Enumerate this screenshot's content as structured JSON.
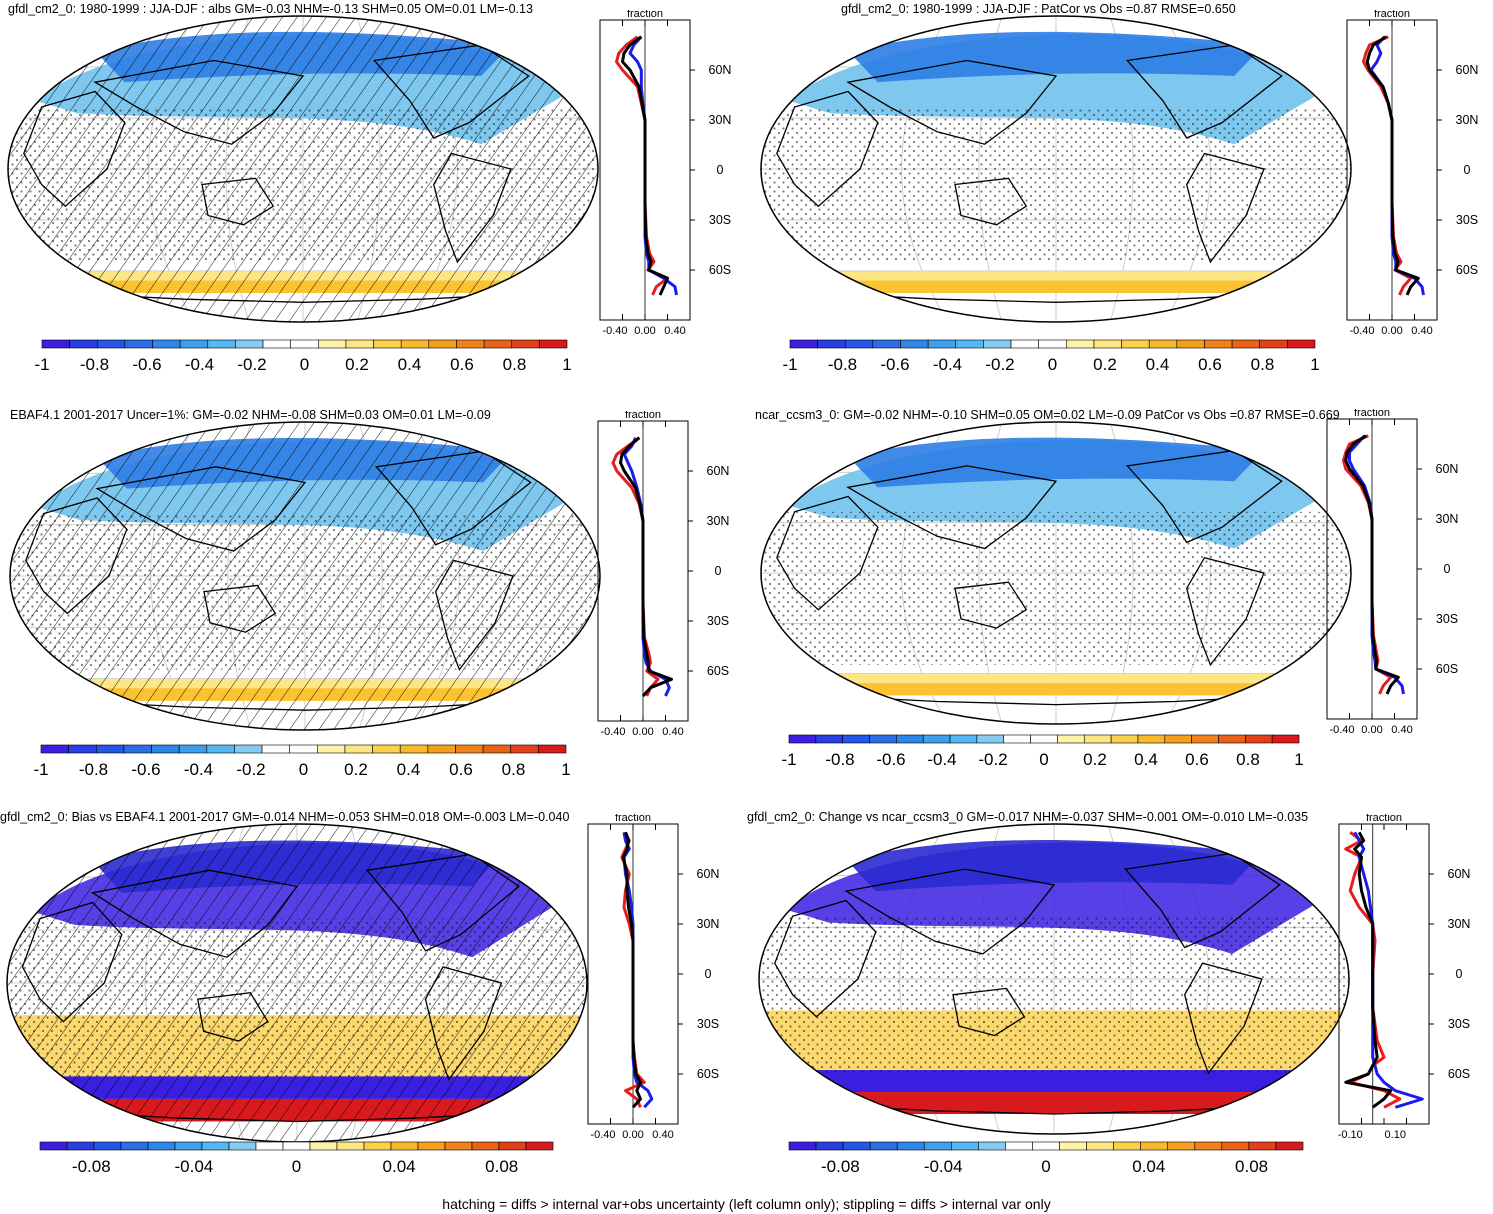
{
  "footer_note": "hatching = diffs > internal var+obs uncertainty (left column only); stippling = diffs > internal var only",
  "colors": {
    "blue_strong": "#3a1fe0",
    "blue_mid": "#2e7de6",
    "blue_light": "#7ec8f0",
    "yellow_light": "#fde784",
    "orange": "#f2a31b",
    "red": "#d8191e",
    "profile_model": "#e81c1c",
    "profile_obs": "#1b1bf0",
    "profile_mean": "#000000"
  },
  "colorbar_palette": [
    "#3a1fe0",
    "#2a3ee6",
    "#2556ea",
    "#2c6ee8",
    "#2e86e8",
    "#3ca0ec",
    "#55b8f2",
    "#86ccf2",
    "#ffffff",
    "#ffffff",
    "#fff3a8",
    "#fde784",
    "#fbd04a",
    "#f8ba2a",
    "#f4a01e",
    "#f0821a",
    "#ea6218",
    "#e2401a",
    "#d8191e"
  ],
  "chart_data": [
    {
      "type": "map",
      "title": "gfdl_cm2_0: 1980-1999 : JJA-DJF : albs GM=-0.03 NHM=-0.13 SHM=0.05 OM=0.01 LM=-0.13",
      "colorbar_ticks": [
        "-1",
        "-0.8",
        "-0.6",
        "-0.4",
        "-0.2",
        "0",
        "0.2",
        "0.4",
        "0.6",
        "0.8",
        "1"
      ],
      "colorbar_range": [
        -1,
        1
      ],
      "overlay": "hatching+stippling",
      "profile": {
        "title": "fraction",
        "x_ticks": [
          "-0.40",
          "0.00",
          "0.40"
        ],
        "xlim": [
          -0.6,
          0.6
        ],
        "lat_ticks": [
          "60N",
          "30N",
          "0",
          "30S",
          "60S"
        ],
        "series": [
          {
            "lat": [
              80,
              75,
              70,
              65,
              60,
              50,
              40,
              30,
              20,
              0,
              -20,
              -40,
              -50,
              -55,
              -60,
              -65,
              -70,
              -75
            ],
            "values": [
              -0.1,
              -0.25,
              -0.35,
              -0.38,
              -0.3,
              -0.1,
              -0.05,
              0.0,
              0.0,
              0.0,
              0.0,
              0.02,
              0.06,
              0.12,
              0.04,
              0.3,
              0.15,
              0.1
            ]
          },
          {
            "lat": [
              80,
              75,
              70,
              65,
              60,
              50,
              40,
              30,
              20,
              0,
              -20,
              -40,
              -50,
              -55,
              -60,
              -65,
              -70,
              -75
            ],
            "values": [
              -0.05,
              -0.15,
              -0.2,
              -0.1,
              -0.05,
              -0.05,
              -0.03,
              0.0,
              0.0,
              0.0,
              0.0,
              0.0,
              0.02,
              0.05,
              0.05,
              0.25,
              0.4,
              0.42
            ]
          },
          {
            "lat": [
              80,
              75,
              70,
              65,
              60,
              50,
              40,
              30,
              20,
              0,
              -20,
              -40,
              -50,
              -55,
              -60,
              -65,
              -70,
              -75
            ],
            "values": [
              -0.05,
              -0.2,
              -0.28,
              -0.3,
              -0.2,
              -0.08,
              -0.04,
              0.0,
              0.0,
              0.0,
              0.0,
              0.01,
              0.04,
              0.08,
              0.05,
              0.3,
              0.25,
              0.2
            ]
          }
        ]
      }
    },
    {
      "type": "map",
      "title": "gfdl_cm2_0: 1980-1999 : JJA-DJF : PatCor vs Obs =0.87 RMSE=0.650",
      "colorbar_ticks": [
        "-1",
        "-0.8",
        "-0.6",
        "-0.4",
        "-0.2",
        "0",
        "0.2",
        "0.4",
        "0.6",
        "0.8",
        "1"
      ],
      "colorbar_range": [
        -1,
        1
      ],
      "overlay": "stippling",
      "profile": {
        "title": "fraction",
        "x_ticks": [
          "-0.40",
          "0.00",
          "0.40"
        ],
        "xlim": [
          -0.6,
          0.6
        ],
        "lat_ticks": [
          "60N",
          "30N",
          "0",
          "30S",
          "60S"
        ],
        "series": [
          {
            "lat": [
              80,
              75,
              70,
              65,
              60,
              50,
              40,
              30,
              20,
              0,
              -20,
              -40,
              -50,
              -55,
              -60,
              -65,
              -70,
              -75
            ],
            "values": [
              -0.05,
              -0.3,
              -0.35,
              -0.38,
              -0.32,
              -0.15,
              -0.05,
              0.0,
              0.0,
              0.0,
              0.0,
              0.02,
              0.06,
              0.12,
              0.04,
              0.25,
              0.15,
              0.1
            ]
          },
          {
            "lat": [
              80,
              75,
              70,
              65,
              60,
              50,
              40,
              30,
              20,
              0,
              -20,
              -40,
              -50,
              -55,
              -60,
              -65,
              -70,
              -75
            ],
            "values": [
              -0.1,
              -0.2,
              -0.15,
              -0.2,
              -0.28,
              -0.12,
              -0.05,
              0.0,
              0.0,
              0.0,
              0.0,
              0.0,
              0.02,
              0.05,
              0.05,
              0.3,
              0.4,
              0.42
            ]
          },
          {
            "lat": [
              80,
              75,
              70,
              65,
              60,
              50,
              40,
              30,
              20,
              0,
              -20,
              -40,
              -50,
              -55,
              -60,
              -65,
              -70,
              -75
            ],
            "values": [
              -0.08,
              -0.25,
              -0.3,
              -0.33,
              -0.3,
              -0.12,
              -0.05,
              0.0,
              0.0,
              0.0,
              0.0,
              0.01,
              0.04,
              0.08,
              0.05,
              0.35,
              0.25,
              0.2
            ]
          }
        ]
      }
    },
    {
      "type": "map",
      "title": "EBAF4.1 2001-2017 Uncer=1%: GM=-0.02 NHM=-0.08 SHM=0.03 OM=0.01 LM=-0.09",
      "colorbar_ticks": [
        "-1",
        "-0.8",
        "-0.6",
        "-0.4",
        "-0.2",
        "0",
        "0.2",
        "0.4",
        "0.6",
        "0.8",
        "1"
      ],
      "colorbar_range": [
        -1,
        1
      ],
      "overlay": "hatching+stippling",
      "profile": {
        "title": "fraction",
        "x_ticks": [
          "-0.40",
          "0.00",
          "0.40"
        ],
        "xlim": [
          -0.6,
          0.6
        ],
        "lat_ticks": [
          "60N",
          "30N",
          "0",
          "30S",
          "60S"
        ],
        "series": [
          {
            "lat": [
              80,
              75,
              70,
              65,
              60,
              50,
              40,
              30,
              20,
              0,
              -20,
              -40,
              -50,
              -55,
              -60,
              -65,
              -70,
              -75
            ],
            "values": [
              -0.05,
              -0.2,
              -0.35,
              -0.4,
              -0.35,
              -0.15,
              -0.05,
              0.0,
              0.0,
              0.0,
              0.0,
              0.02,
              0.08,
              0.1,
              0.05,
              0.2,
              0.1,
              0.05
            ]
          },
          {
            "lat": [
              80,
              75,
              70,
              65,
              60,
              50,
              40,
              30,
              20,
              0,
              -20,
              -40,
              -50,
              -55,
              -60,
              -65,
              -70,
              -75
            ],
            "values": [
              -0.1,
              -0.15,
              -0.25,
              -0.2,
              -0.15,
              -0.08,
              -0.03,
              0.0,
              0.0,
              0.0,
              0.0,
              0.0,
              0.02,
              0.04,
              0.1,
              0.3,
              0.35,
              0.3
            ]
          },
          {
            "lat": [
              80,
              75,
              70,
              65,
              60,
              50,
              40,
              30,
              20,
              0,
              -20,
              -40,
              -50,
              -55,
              -60,
              -65,
              -70,
              -75
            ],
            "values": [
              -0.05,
              -0.18,
              -0.28,
              -0.3,
              -0.25,
              -0.1,
              -0.04,
              0.0,
              0.0,
              0.0,
              0.0,
              0.01,
              0.05,
              0.07,
              0.08,
              0.38,
              0.1,
              0.0
            ]
          }
        ]
      }
    },
    {
      "type": "map",
      "title": "ncar_ccsm3_0: GM=-0.02 NHM=-0.10 SHM=0.05 OM=0.02 LM=-0.09 PatCor vs Obs =0.87 RMSE=0.669",
      "colorbar_ticks": [
        "-1",
        "-0.8",
        "-0.6",
        "-0.4",
        "-0.2",
        "0",
        "0.2",
        "0.4",
        "0.6",
        "0.8",
        "1"
      ],
      "colorbar_range": [
        -1,
        1
      ],
      "overlay": "stippling",
      "profile": {
        "title": "fraction",
        "x_ticks": [
          "-0.40",
          "0.00",
          "0.40"
        ],
        "xlim": [
          -0.6,
          0.6
        ],
        "lat_ticks": [
          "60N",
          "30N",
          "0",
          "30S",
          "60S"
        ],
        "series": [
          {
            "lat": [
              80,
              75,
              70,
              65,
              60,
              50,
              40,
              30,
              20,
              0,
              -20,
              -40,
              -50,
              -55,
              -60,
              -65,
              -70,
              -75
            ],
            "values": [
              -0.05,
              -0.3,
              -0.35,
              -0.38,
              -0.35,
              -0.15,
              -0.05,
              0.0,
              0.0,
              0.0,
              0.0,
              0.02,
              0.06,
              0.08,
              0.05,
              0.25,
              0.15,
              0.1
            ]
          },
          {
            "lat": [
              80,
              75,
              70,
              65,
              60,
              50,
              40,
              30,
              20,
              0,
              -20,
              -40,
              -50,
              -55,
              -60,
              -65,
              -70,
              -75
            ],
            "values": [
              -0.1,
              -0.2,
              -0.3,
              -0.3,
              -0.25,
              -0.1,
              -0.03,
              0.0,
              0.0,
              0.0,
              0.0,
              0.0,
              0.02,
              0.04,
              0.05,
              0.3,
              0.4,
              0.42
            ]
          },
          {
            "lat": [
              80,
              75,
              70,
              65,
              60,
              50,
              40,
              30,
              20,
              0,
              -20,
              -40,
              -50,
              -55,
              -60,
              -65,
              -70,
              -75
            ],
            "values": [
              -0.08,
              -0.25,
              -0.33,
              -0.35,
              -0.3,
              -0.12,
              -0.04,
              0.0,
              0.0,
              0.0,
              0.0,
              0.01,
              0.04,
              0.06,
              0.05,
              0.35,
              0.25,
              0.2
            ]
          }
        ]
      }
    },
    {
      "type": "map",
      "title": "gfdl_cm2_0: Bias vs EBAF4.1 2001-2017 GM=-0.014 NHM=-0.053 SHM=0.018 OM=-0.003 LM=-0.040",
      "colorbar_ticks": [
        "-0.08",
        "-0.04",
        "0",
        "0.04",
        "0.08"
      ],
      "colorbar_range": [
        -0.1,
        0.1
      ],
      "overlay": "hatching+stippling",
      "profile": {
        "title": "fraction",
        "x_ticks": [
          "-0.40",
          "0.00",
          "0.40"
        ],
        "xlim": [
          -0.6,
          0.6
        ],
        "lat_ticks": [
          "60N",
          "30N",
          "0",
          "30S",
          "60S"
        ],
        "series": [
          {
            "lat": [
              85,
              80,
              75,
              70,
              60,
              50,
              40,
              30,
              20,
              0,
              -20,
              -40,
              -50,
              -60,
              -65,
              -70,
              -75,
              -80
            ],
            "values": [
              -0.1,
              -0.05,
              -0.1,
              -0.15,
              -0.05,
              -0.1,
              -0.12,
              -0.05,
              0.0,
              0.0,
              0.0,
              0.0,
              0.02,
              0.05,
              0.15,
              -0.1,
              0.05,
              0.1
            ]
          },
          {
            "lat": [
              85,
              80,
              75,
              70,
              60,
              50,
              40,
              30,
              20,
              0,
              -20,
              -40,
              -50,
              -60,
              -65,
              -70,
              -75,
              -80
            ],
            "values": [
              -0.12,
              -0.1,
              -0.05,
              -0.12,
              -0.1,
              -0.05,
              -0.02,
              0.0,
              0.0,
              0.0,
              0.0,
              0.0,
              0.0,
              0.02,
              0.05,
              0.2,
              0.25,
              0.15
            ]
          },
          {
            "lat": [
              85,
              80,
              75,
              70,
              60,
              50,
              40,
              30,
              20,
              0,
              -20,
              -40,
              -50,
              -60,
              -65,
              -70,
              -75,
              -80
            ],
            "values": [
              -0.1,
              -0.06,
              -0.08,
              -0.13,
              -0.08,
              -0.08,
              -0.06,
              -0.02,
              0.0,
              0.0,
              0.0,
              0.0,
              0.01,
              0.04,
              0.1,
              0.05,
              0.1,
              0.0
            ]
          }
        ]
      }
    },
    {
      "type": "map",
      "title": "gfdl_cm2_0: Change vs ncar_ccsm3_0 GM=-0.017 NHM=-0.037 SHM=-0.001 OM=-0.010 LM=-0.035",
      "colorbar_ticks": [
        "-0.08",
        "-0.04",
        "0",
        "0.04",
        "0.08"
      ],
      "colorbar_range": [
        -0.1,
        0.1
      ],
      "overlay": "stippling",
      "profile": {
        "title": "fraction",
        "x_ticks": [
          "-0.10",
          "0.10"
        ],
        "xlim": [
          -0.15,
          0.25
        ],
        "lat_ticks": [
          "60N",
          "30N",
          "0",
          "30S",
          "60S"
        ],
        "series": [
          {
            "lat": [
              85,
              80,
              75,
              70,
              60,
              50,
              40,
              30,
              20,
              0,
              -20,
              -40,
              -50,
              -55,
              -60,
              -65,
              -70,
              -75,
              -80
            ],
            "values": [
              -0.1,
              -0.05,
              -0.12,
              -0.05,
              -0.08,
              -0.1,
              -0.06,
              0.0,
              0.01,
              0.0,
              0.0,
              0.02,
              0.05,
              0.0,
              -0.02,
              -0.1,
              0.05,
              0.12,
              0.05
            ]
          },
          {
            "lat": [
              85,
              80,
              75,
              70,
              60,
              50,
              40,
              30,
              20,
              0,
              -20,
              -40,
              -50,
              -55,
              -60,
              -65,
              -70,
              -75,
              -80
            ],
            "values": [
              -0.08,
              -0.06,
              -0.04,
              -0.06,
              -0.04,
              -0.02,
              -0.01,
              0.0,
              0.0,
              0.0,
              0.0,
              0.0,
              0.0,
              0.01,
              0.02,
              0.05,
              0.1,
              0.22,
              0.1
            ]
          },
          {
            "lat": [
              85,
              80,
              75,
              70,
              60,
              50,
              40,
              30,
              20,
              0,
              -20,
              -40,
              -50,
              -55,
              -60,
              -65,
              -70,
              -75,
              -80
            ],
            "values": [
              -0.06,
              -0.04,
              -0.08,
              -0.05,
              -0.06,
              -0.05,
              -0.03,
              0.0,
              0.0,
              0.0,
              0.0,
              0.01,
              0.02,
              0.0,
              -0.02,
              -0.12,
              0.08,
              0.05,
              0.0
            ]
          }
        ]
      }
    }
  ]
}
